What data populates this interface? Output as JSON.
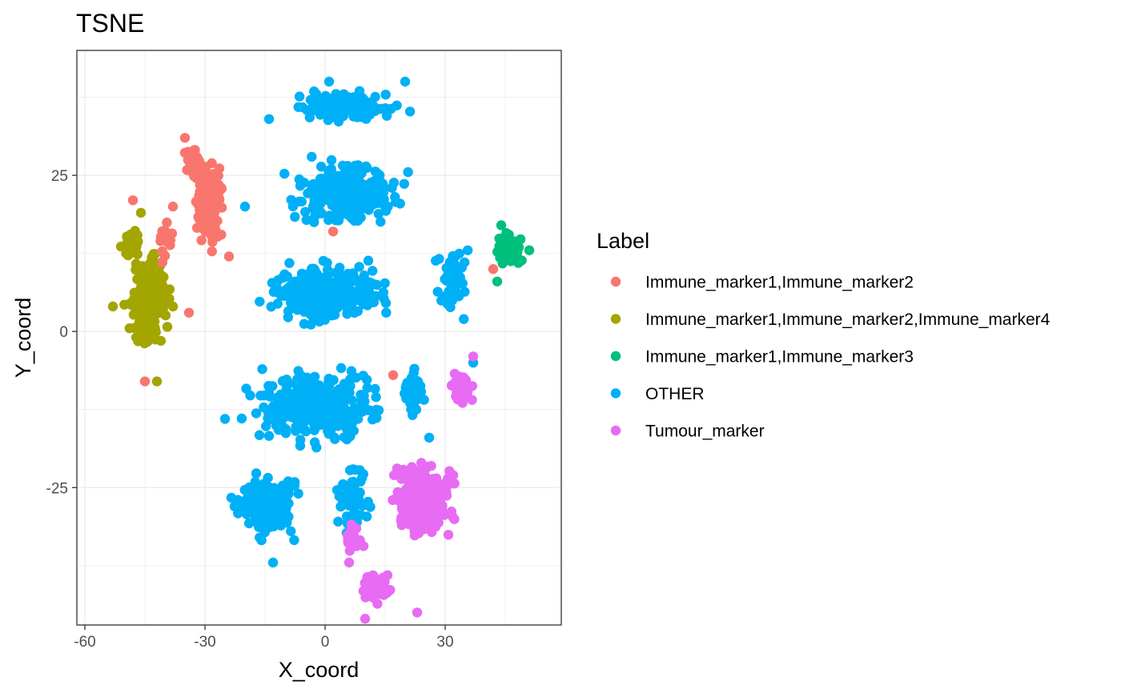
{
  "chart_data": {
    "type": "scatter",
    "title": "TSNE",
    "xlabel": "X_coord",
    "ylabel": "Y_coord",
    "xlim": [
      -62,
      59
    ],
    "ylim": [
      -47,
      45
    ],
    "x_ticks": [
      -60,
      -30,
      0,
      30
    ],
    "y_ticks": [
      -25,
      0,
      25
    ],
    "x_tick_labels": [
      "-60",
      "-30",
      "0",
      "30"
    ],
    "y_tick_labels": [
      "-25",
      "0",
      "25"
    ],
    "grid": true,
    "legend": {
      "title": "Label",
      "placement": "right"
    },
    "series": [
      {
        "name": "Immune_marker1,Immune_marker2",
        "color": "#F8766D",
        "clusters": [
          {
            "center": [
              -29,
              20
            ],
            "radius": [
              6,
              11
            ],
            "n": 180
          },
          {
            "center": [
              -33,
              27
            ],
            "radius": [
              4,
              4
            ],
            "n": 40
          },
          {
            "center": [
              -40,
              14
            ],
            "radius": [
              3,
              6
            ],
            "n": 20
          }
        ],
        "values": [
          [
            -35,
            31
          ],
          [
            -48,
            21
          ],
          [
            -38,
            20
          ],
          [
            -24,
            12
          ],
          [
            2,
            16
          ],
          [
            42,
            10
          ],
          [
            17,
            -7
          ],
          [
            -45,
            -8
          ],
          [
            -34,
            3
          ]
        ]
      },
      {
        "name": "Immune_marker1,Immune_marker2,Immune_marker4",
        "color": "#A3A500",
        "clusters": [
          {
            "center": [
              -44,
              5
            ],
            "radius": [
              8,
              13
            ],
            "n": 260
          },
          {
            "center": [
              -48,
              14
            ],
            "radius": [
              4,
              5
            ],
            "n": 40
          }
        ],
        "values": [
          [
            -53,
            4
          ],
          [
            -38,
            4
          ],
          [
            -42,
            -8
          ],
          [
            -46,
            19
          ]
        ]
      },
      {
        "name": "Immune_marker1,Immune_marker3",
        "color": "#00BF7D",
        "clusters": [
          {
            "center": [
              46,
              13
            ],
            "radius": [
              6,
              5
            ],
            "n": 80
          }
        ],
        "values": [
          [
            43,
            8
          ],
          [
            51,
            13
          ],
          [
            44,
            17
          ]
        ]
      },
      {
        "name": "OTHER",
        "color": "#00B0F6",
        "clusters": [
          {
            "center": [
              5,
              36
            ],
            "radius": [
              19,
              4
            ],
            "n": 160
          },
          {
            "center": [
              5,
              22
            ],
            "radius": [
              23,
              9
            ],
            "n": 260
          },
          {
            "center": [
              0,
              6
            ],
            "radius": [
              27,
              8
            ],
            "n": 300
          },
          {
            "center": [
              -2,
              -12
            ],
            "radius": [
              28,
              10
            ],
            "n": 360
          },
          {
            "center": [
              -15,
              -28
            ],
            "radius": [
              14,
              9
            ],
            "n": 180
          },
          {
            "center": [
              7,
              -27
            ],
            "radius": [
              7,
              8
            ],
            "n": 60
          },
          {
            "center": [
              32,
              8
            ],
            "radius": [
              6,
              10
            ],
            "n": 60
          },
          {
            "center": [
              22,
              -10
            ],
            "radius": [
              5,
              7
            ],
            "n": 50
          }
        ],
        "values": [
          [
            1,
            40
          ],
          [
            20,
            40
          ],
          [
            -20,
            20
          ],
          [
            -14,
            34
          ],
          [
            -25,
            -14
          ],
          [
            -13,
            -37
          ],
          [
            37,
            -5
          ],
          [
            26,
            -17
          ]
        ]
      },
      {
        "name": "Tumour_marker",
        "color": "#E76BF3",
        "clusters": [
          {
            "center": [
              25,
              -27
            ],
            "radius": [
              14,
              10
            ],
            "n": 320
          },
          {
            "center": [
              13,
              -41
            ],
            "radius": [
              6,
              4
            ],
            "n": 60
          },
          {
            "center": [
              34,
              -9
            ],
            "radius": [
              5,
              5
            ],
            "n": 50
          },
          {
            "center": [
              7,
              -33
            ],
            "radius": [
              4,
              4
            ],
            "n": 30
          }
        ],
        "values": [
          [
            37,
            -4
          ],
          [
            10,
            -46
          ],
          [
            6,
            -37
          ],
          [
            23,
            -45
          ]
        ]
      }
    ]
  }
}
